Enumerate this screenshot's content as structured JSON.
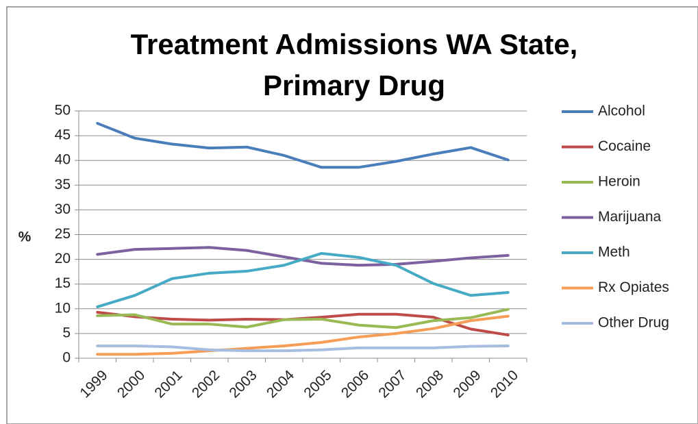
{
  "chart_data": {
    "type": "line",
    "title": [
      "Treatment Admissions WA State,",
      "Primary Drug"
    ],
    "y_label": "%",
    "categories": [
      "1999",
      "2000",
      "2001",
      "2002",
      "2003",
      "2004",
      "2005",
      "2006",
      "2007",
      "2008",
      "2009",
      "2010"
    ],
    "series": [
      {
        "name": "Alcohol",
        "color": "#4a7ebb",
        "values": [
          47.5,
          44.5,
          43.3,
          42.5,
          42.7,
          41,
          38.6,
          38.6,
          39.8,
          41.3,
          42.6,
          40.1
        ]
      },
      {
        "name": "Cocaine",
        "color": "#be4b48",
        "values": [
          9.3,
          8.4,
          7.9,
          7.7,
          7.9,
          7.8,
          8.3,
          8.9,
          8.9,
          8.3,
          5.9,
          4.7
        ]
      },
      {
        "name": "Heroin",
        "color": "#98b954",
        "values": [
          8.6,
          8.8,
          6.9,
          6.9,
          6.3,
          7.8,
          7.9,
          6.7,
          6.2,
          7.6,
          8.2,
          9.9
        ]
      },
      {
        "name": "Marijuana",
        "color": "#7d60a0",
        "values": [
          21,
          22,
          22.2,
          22.4,
          21.8,
          20.5,
          19.2,
          18.8,
          19,
          19.6,
          20.3,
          20.8
        ]
      },
      {
        "name": "Meth",
        "color": "#46aac5",
        "values": [
          10.4,
          12.7,
          16.1,
          17.2,
          17.6,
          18.8,
          21.2,
          20.4,
          18.8,
          15.1,
          12.7,
          13.3
        ]
      },
      {
        "name": "Rx Opiates",
        "color": "#f59d56",
        "values": [
          0.8,
          0.8,
          1,
          1.5,
          2,
          2.5,
          3.2,
          4.3,
          5,
          6,
          7.6,
          8.5
        ]
      },
      {
        "name": "Other Drug",
        "color": "#a5bde0",
        "values": [
          2.5,
          2.5,
          2.3,
          1.7,
          1.5,
          1.5,
          1.7,
          2.1,
          2.1,
          2.1,
          2.4,
          2.5
        ]
      }
    ],
    "ylim": [
      0,
      50
    ],
    "yticks": [
      0,
      5,
      10,
      15,
      20,
      25,
      30,
      35,
      40,
      45,
      50
    ],
    "grid": true,
    "legend": "right"
  }
}
